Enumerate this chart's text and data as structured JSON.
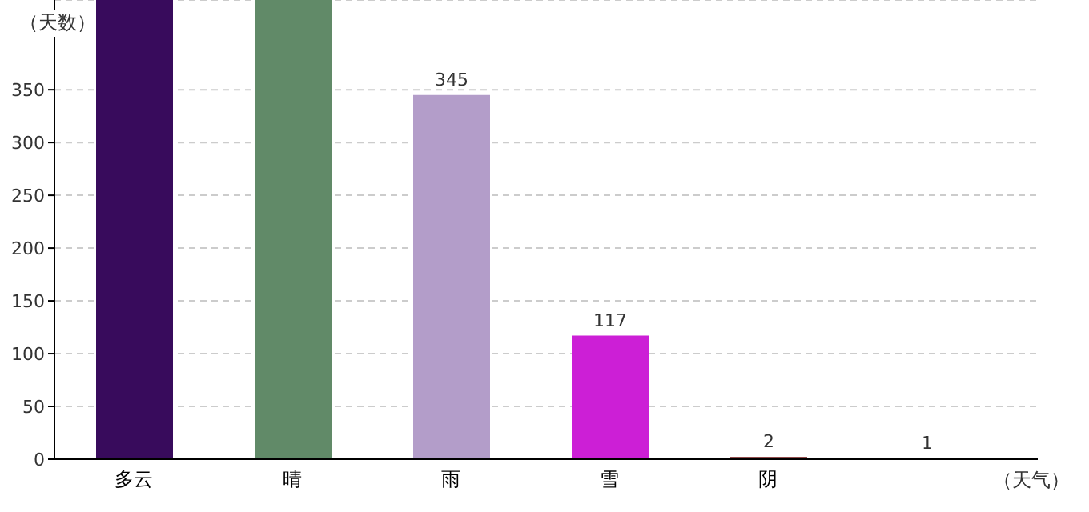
{
  "chart_data": {
    "type": "bar",
    "xlabel": "（天气）",
    "ylabel": "（天数）",
    "categories": [
      "多云",
      "晴",
      "雨",
      "雪",
      "阴",
      null
    ],
    "values": [
      435,
      435,
      345,
      117,
      2,
      1
    ],
    "value_labels": [
      null,
      null,
      "345",
      "117",
      "2",
      "1"
    ],
    "colors": [
      "#380b5c",
      "#618a68",
      "#b39dc9",
      "#cc1fd6",
      "#6b0f0f",
      "#1b2b5c"
    ],
    "ylim": [
      0,
      435
    ],
    "yticks": [
      0,
      50,
      100,
      150,
      200,
      250,
      300,
      350
    ],
    "grid": "y"
  }
}
